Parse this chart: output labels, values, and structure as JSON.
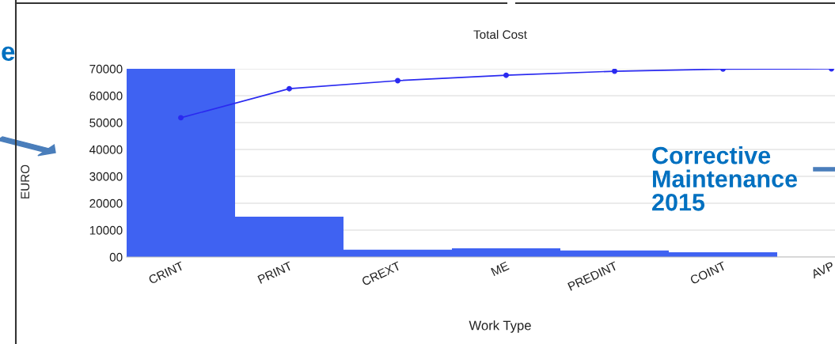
{
  "chart_data": {
    "type": "bar",
    "title": "Total Cost",
    "xlabel": "Work Type",
    "ylabel": "EURO",
    "categories": [
      "CRINT",
      "PRINT",
      "CREXT",
      "ME",
      "PREDINT",
      "COINT",
      "AVP"
    ],
    "series": [
      {
        "color": "#3f62f2",
        "values": [
          70000,
          15000,
          2700,
          3200,
          2400,
          1800,
          0
        ]
      },
      {
        "type": "line",
        "color": "#2a2af0",
        "marker": "circle",
        "values": [
          51800,
          62600,
          65600,
          67600,
          69100,
          69900,
          70000
        ]
      }
    ],
    "ylim": [
      0,
      70000
    ],
    "yticks": [
      {
        "value": 0,
        "label": "00"
      },
      10000,
      20000,
      30000,
      40000,
      50000,
      60000,
      70000
    ],
    "grid": "y",
    "annotations": [
      "Corrective Maintenance 2015",
      "e"
    ]
  }
}
